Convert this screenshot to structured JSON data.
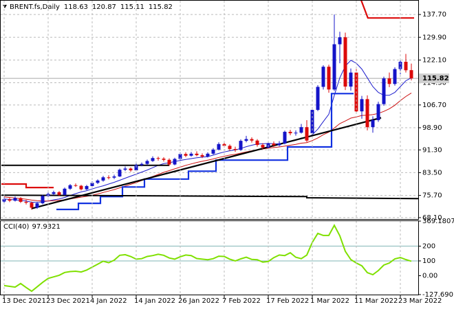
{
  "chart_data": [
    {
      "type": "candlestick",
      "title": "BRENT.fs,Daily",
      "categories": [
        "13 Dec 2021",
        null,
        null,
        null,
        null,
        null,
        null,
        null,
        "23 Dec 2021",
        null,
        null,
        null,
        null,
        null,
        null,
        null,
        "4 Jan 2022",
        null,
        null,
        null,
        null,
        null,
        null,
        null,
        "14 Jan 2022",
        null,
        null,
        null,
        null,
        null,
        null,
        null,
        "26 Jan 2022",
        null,
        null,
        null,
        null,
        null,
        null,
        null,
        "7 Feb 2022",
        null,
        null,
        null,
        null,
        null,
        null,
        null,
        "17 Feb 2022",
        null,
        null,
        null,
        null,
        null,
        null,
        null,
        "1 Mar 2022",
        null,
        null,
        null,
        null,
        null,
        null,
        null,
        "11 Mar 2022",
        null,
        null,
        null,
        null,
        null,
        null,
        null,
        "23 Mar 2022",
        null,
        null
      ],
      "open": [
        73.6,
        74.4,
        73.9,
        74.8,
        73.5,
        73.2,
        71.5,
        73.0,
        75.5,
        76.2,
        76.8,
        75.9,
        78.0,
        79.2,
        79.0,
        77.8,
        78.9,
        80.0,
        80.8,
        81.9,
        81.8,
        82.2,
        84.5,
        84.9,
        84.3,
        86.1,
        86.5,
        87.5,
        88.5,
        88.3,
        87.9,
        86.3,
        88.2,
        89.9,
        89.3,
        90.0,
        89.5,
        89.0,
        90.0,
        91.4,
        93.3,
        92.7,
        91.6,
        91.3,
        94.4,
        95.0,
        94.5,
        93.0,
        92.1,
        93.5,
        92.9,
        93.5,
        97.5,
        97.0,
        97.2,
        99.1,
        97.0,
        105.0,
        112.9,
        119.8,
        112.0,
        127.5,
        129.9,
        113.0,
        117.8,
        104.5,
        108.7,
        99.1,
        101.5,
        107.0,
        115.8,
        113.9,
        119.0,
        121.5,
        118.63
      ],
      "high": [
        75.0,
        74.9,
        75.3,
        75.1,
        74.2,
        73.6,
        73.5,
        75.9,
        76.7,
        77.3,
        77.2,
        78.4,
        79.6,
        79.8,
        79.3,
        79.3,
        80.5,
        81.2,
        82.4,
        82.6,
        82.8,
        84.9,
        85.6,
        85.3,
        86.6,
        87.0,
        88.0,
        89.1,
        89.0,
        88.8,
        88.4,
        88.6,
        90.4,
        90.5,
        90.6,
        90.8,
        90.1,
        90.5,
        91.9,
        93.9,
        94.0,
        93.2,
        92.4,
        94.9,
        96.1,
        95.6,
        95.0,
        93.6,
        94.0,
        94.2,
        94.3,
        97.9,
        98.2,
        98.0,
        100.2,
        101.5,
        105.8,
        113.5,
        120.3,
        120.5,
        137.7,
        131.8,
        131.5,
        119.2,
        119.0,
        109.8,
        110.0,
        102.8,
        107.8,
        116.4,
        117.8,
        119.6,
        122.0,
        124.2,
        120.87
      ],
      "low": [
        73.2,
        73.4,
        73.6,
        73.1,
        72.6,
        70.8,
        71.1,
        72.7,
        75.1,
        75.8,
        75.5,
        75.7,
        77.6,
        78.6,
        77.4,
        77.5,
        78.4,
        79.6,
        80.4,
        81.2,
        81.3,
        82.0,
        84.0,
        83.8,
        84.0,
        85.7,
        86.1,
        87.2,
        87.6,
        87.3,
        85.8,
        86.0,
        87.9,
        88.8,
        89.0,
        89.1,
        88.5,
        88.7,
        89.7,
        91.1,
        92.2,
        91.0,
        90.6,
        91.0,
        93.9,
        93.8,
        92.4,
        91.6,
        91.8,
        92.3,
        92.5,
        93.2,
        96.3,
        96.2,
        96.9,
        94.0,
        96.6,
        104.6,
        112.0,
        110.9,
        111.5,
        121.0,
        111.8,
        111.6,
        103.8,
        102.0,
        98.0,
        97.2,
        100.9,
        106.4,
        112.8,
        113.3,
        117.2,
        117.8,
        115.11
      ],
      "close": [
        74.4,
        73.9,
        74.8,
        73.5,
        73.2,
        71.5,
        73.0,
        75.5,
        76.2,
        76.8,
        75.9,
        78.0,
        79.2,
        79.0,
        77.8,
        78.9,
        80.0,
        80.8,
        81.9,
        81.8,
        82.2,
        84.5,
        84.9,
        84.3,
        86.1,
        86.5,
        87.5,
        88.5,
        88.3,
        87.9,
        86.3,
        88.2,
        89.9,
        89.3,
        90.0,
        89.5,
        89.0,
        90.0,
        91.4,
        93.3,
        92.7,
        91.6,
        91.3,
        94.4,
        95.0,
        94.5,
        93.0,
        92.1,
        93.5,
        92.9,
        93.5,
        97.5,
        97.0,
        97.2,
        99.1,
        94.5,
        105.0,
        112.9,
        119.8,
        112.0,
        127.5,
        129.9,
        113.0,
        117.8,
        104.5,
        108.7,
        99.1,
        101.5,
        107.0,
        115.8,
        113.9,
        119.0,
        121.5,
        118.6,
        115.82
      ],
      "up_color": "#1414c8",
      "down_color": "#dc0a0a",
      "ylim": [
        67.6,
        142.2
      ],
      "yticks": [
        {
          "value": 137.7,
          "label": "137.70"
        },
        {
          "value": 129.9,
          "label": "129.90"
        },
        {
          "value": 122.1,
          "label": "122.10"
        },
        {
          "value": 114.3,
          "label": "114.30"
        },
        {
          "value": 106.7,
          "label": "106.70"
        },
        {
          "value": 98.9,
          "label": "98.90"
        },
        {
          "value": 91.3,
          "label": "91.30"
        },
        {
          "value": 83.5,
          "label": "83.50"
        },
        {
          "value": 75.7,
          "label": "75.70"
        },
        {
          "value": 68.1,
          "label": "68.10"
        }
      ],
      "grid": true,
      "moving_averages": [
        {
          "color": "#1c1ccc",
          "values": [
            74.5,
            74.3,
            74.2,
            74.0,
            73.8,
            73.4,
            73.3,
            73.5,
            73.8,
            74.2,
            74.5,
            75.0,
            75.7,
            76.3,
            76.9,
            77.3,
            77.9,
            78.5,
            79.0,
            79.6,
            80.2,
            80.9,
            81.6,
            82.3,
            83.0,
            83.7,
            84.4,
            85.2,
            86.0,
            86.6,
            86.9,
            87.3,
            87.7,
            88.0,
            88.3,
            88.6,
            88.8,
            89.0,
            89.5,
            90.1,
            90.6,
            91.0,
            91.3,
            91.8,
            92.4,
            92.9,
            93.3,
            93.4,
            93.5,
            93.4,
            93.4,
            93.8,
            94.2,
            94.6,
            95.4,
            95.4,
            96.5,
            98.4,
            101.0,
            103.5,
            110.0,
            116.0,
            120.0,
            122.0,
            121.0,
            119.0,
            116.0,
            113.0,
            111.0,
            110.0,
            110.0,
            111.0,
            113.0,
            115.0,
            116.0
          ]
        },
        {
          "color": "#cc1010",
          "values": [
            75.2,
            75.0,
            74.8,
            74.6,
            74.4,
            74.1,
            73.9,
            73.8,
            73.8,
            73.9,
            74.0,
            74.2,
            74.5,
            74.8,
            75.1,
            75.4,
            75.8,
            76.2,
            76.7,
            77.2,
            77.7,
            78.3,
            78.9,
            79.5,
            80.1,
            80.8,
            81.5,
            82.2,
            82.9,
            83.6,
            84.2,
            84.8,
            85.4,
            86.0,
            86.5,
            87.0,
            87.4,
            87.8,
            88.2,
            88.7,
            89.1,
            89.5,
            89.8,
            90.2,
            90.6,
            91.0,
            91.3,
            91.6,
            91.9,
            92.1,
            92.3,
            92.6,
            92.9,
            93.2,
            93.6,
            93.8,
            94.5,
            95.4,
            96.5,
            97.4,
            98.8,
            100.3,
            101.2,
            102.2,
            102.6,
            103.1,
            103.2,
            103.4,
            103.8,
            104.5,
            105.4,
            106.6,
            108.2,
            109.6,
            110.8
          ]
        }
      ],
      "overlays": [
        {
          "color": "#1030e0",
          "width": 2.2,
          "x": [
            9.5,
            13.5,
            13.5,
            17.5,
            17.5,
            21.5,
            21.5,
            25.5,
            25.5,
            33.5,
            33.5,
            38.5,
            38.5,
            51.5,
            51.5,
            59.5,
            59.5,
            63.5
          ],
          "y": [
            70.9,
            70.9,
            73.0,
            73.0,
            75.3,
            75.3,
            78.6,
            78.6,
            81.3,
            81.3,
            84.0,
            84.0,
            87.8,
            87.8,
            92.3,
            92.3,
            110.6,
            110.6
          ]
        },
        {
          "color": "#dc0a0a",
          "width": 2.2,
          "x": [
            -0.5,
            4,
            4,
            9
          ],
          "y": [
            79.6,
            79.6,
            78.4,
            78.4
          ]
        },
        {
          "color": "#dc0a0a",
          "width": 2.2,
          "x": [
            64.8,
            66.1,
            74.5
          ],
          "y": [
            143,
            136.5,
            136.5
          ]
        },
        {
          "color": "#000000",
          "width": 2,
          "x": [
            -0.5,
            30
          ],
          "y": [
            86.0,
            86.0
          ]
        },
        {
          "color": "#000000",
          "width": 2,
          "x": [
            -0.5,
            55,
            55,
            75.5
          ],
          "y": [
            75.8,
            75.3,
            74.9,
            74.6
          ]
        },
        {
          "color": "#000000",
          "width": 2.2,
          "x": [
            5,
            68.5
          ],
          "y": [
            71.2,
            102.3
          ]
        }
      ],
      "price_line_color": "#a8a8a8"
    },
    {
      "type": "line",
      "title": "CCI(40)",
      "values": [
        -67,
        -72,
        -77,
        -53,
        -80,
        -105,
        -75,
        -45,
        -18,
        -8,
        3,
        22,
        28,
        30,
        25,
        38,
        58,
        78,
        98,
        88,
        105,
        138,
        142,
        130,
        112,
        115,
        130,
        136,
        145,
        138,
        120,
        112,
        128,
        140,
        136,
        116,
        112,
        108,
        115,
        132,
        130,
        112,
        100,
        114,
        125,
        110,
        108,
        92,
        96,
        122,
        140,
        136,
        155,
        125,
        115,
        140,
        225,
        286,
        272,
        272,
        341,
        270,
        165,
        109,
        86,
        67,
        21,
        7,
        35,
        72,
        86,
        114,
        123,
        109,
        97.9321
      ],
      "color": "#7fe000",
      "ylim": [
        -127.69,
        369.1807
      ],
      "yticks": [
        {
          "value": 369.1807,
          "label": "369.1807"
        },
        200,
        100,
        {
          "value": 0,
          "label": "0.00"
        },
        {
          "value": -127.69,
          "label": "-127.690"
        }
      ],
      "grid": false,
      "levels": [
        200,
        100
      ],
      "level_color": "#7fb4b4"
    }
  ]
}
